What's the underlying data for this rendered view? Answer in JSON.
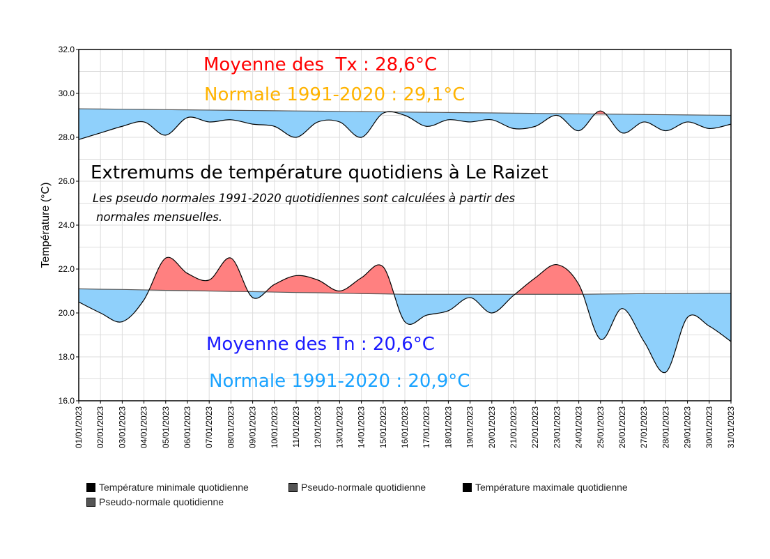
{
  "chart_data": {
    "type": "area",
    "title": "Extremums de température quotidiens à Le Raizet",
    "subtitle_lines": [
      "Les pseudo normales 1991-2020 quotidiennes sont calculées à partir des",
      "normales mensuelles."
    ],
    "ylabel": "Température (°C)",
    "ylim": [
      16,
      32
    ],
    "yticks": [
      "16.0",
      "18.0",
      "20.0",
      "22.0",
      "24.0",
      "26.0",
      "28.0",
      "30.0",
      "32.0"
    ],
    "grid": true,
    "x": [
      "01/01/2023",
      "02/01/2023",
      "03/01/2023",
      "04/01/2023",
      "05/01/2023",
      "06/01/2023",
      "07/01/2023",
      "08/01/2023",
      "09/01/2023",
      "10/01/2023",
      "11/01/2023",
      "12/01/2023",
      "13/01/2023",
      "14/01/2023",
      "15/01/2023",
      "16/01/2023",
      "17/01/2023",
      "18/01/2023",
      "19/01/2023",
      "20/01/2023",
      "21/01/2023",
      "22/01/2023",
      "23/01/2023",
      "24/01/2023",
      "25/01/2023",
      "26/01/2023",
      "27/01/2023",
      "28/01/2023",
      "29/01/2023",
      "30/01/2023",
      "31/01/2023"
    ],
    "series": [
      {
        "name": "Température minimale quotidienne",
        "values": [
          20.5,
          20.0,
          19.6,
          20.6,
          22.5,
          21.8,
          21.5,
          22.5,
          20.7,
          21.3,
          21.7,
          21.5,
          21.0,
          21.6,
          22.1,
          19.6,
          19.9,
          20.1,
          20.7,
          20.0,
          20.8,
          21.6,
          22.2,
          21.3,
          18.8,
          20.2,
          18.7,
          17.3,
          19.8,
          19.4,
          18.7
        ]
      },
      {
        "name": "Pseudo-normale quotidienne",
        "values": [
          21.1,
          21.08,
          21.07,
          21.05,
          21.03,
          21.02,
          21.0,
          20.98,
          20.97,
          20.95,
          20.93,
          20.92,
          20.9,
          20.88,
          20.87,
          20.85,
          20.85,
          20.85,
          20.85,
          20.85,
          20.85,
          20.85,
          20.85,
          20.85,
          20.86,
          20.87,
          20.88,
          20.88,
          20.89,
          20.9,
          20.9
        ]
      },
      {
        "name": "Température maximale quotidienne",
        "values": [
          27.9,
          28.2,
          28.5,
          28.7,
          28.1,
          28.9,
          28.7,
          28.8,
          28.6,
          28.5,
          28.0,
          28.7,
          28.7,
          28.0,
          29.1,
          29.0,
          28.5,
          28.8,
          28.7,
          28.8,
          28.4,
          28.5,
          29.0,
          28.3,
          29.2,
          28.2,
          28.7,
          28.3,
          28.7,
          28.4,
          28.6
        ]
      },
      {
        "name": "Pseudo-normale quotidienne",
        "values": [
          29.3,
          29.29,
          29.28,
          29.27,
          29.26,
          29.25,
          29.24,
          29.23,
          29.22,
          29.21,
          29.2,
          29.19,
          29.18,
          29.17,
          29.16,
          29.15,
          29.14,
          29.13,
          29.12,
          29.11,
          29.1,
          29.09,
          29.08,
          29.07,
          29.06,
          29.05,
          29.04,
          29.03,
          29.02,
          29.01,
          29.0
        ]
      }
    ],
    "annotations": {
      "tx_mean": "Moyenne des  Tx : 28,6°C",
      "tx_normal": "Normale 1991-2020 : 29,1°C",
      "tn_mean": "Moyenne des Tn : 20,6°C",
      "tn_normal": "Normale 1991-2020 : 20,9°C"
    },
    "colors": {
      "above": "#ff8080",
      "below": "#8fd0fb",
      "tx_mean": "#ff0000",
      "tx_normal": "#ffb300",
      "tn_mean": "#1a1aff",
      "tn_normal": "#1aa3ff"
    },
    "legend_placement": "bottom-left",
    "legend": [
      "Température minimale quotidienne",
      "Pseudo-normale quotidienne",
      "Température maximale quotidienne",
      "Pseudo-normale quotidienne"
    ],
    "legend_colors": [
      "#000000",
      "#555555",
      "#000000",
      "#555555"
    ]
  }
}
